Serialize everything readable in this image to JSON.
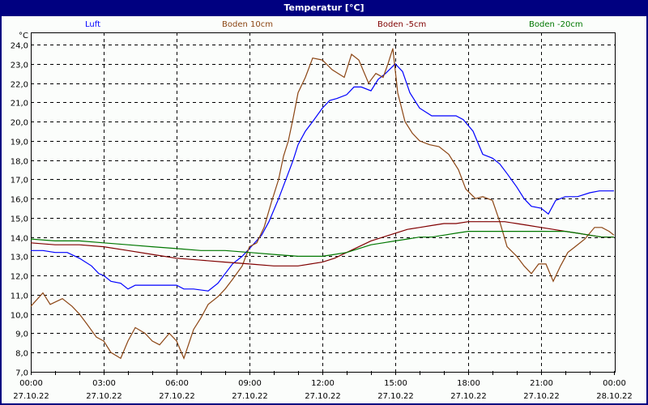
{
  "window": {
    "title": "Temperatur [°C]"
  },
  "legend": [
    {
      "label": "Luft",
      "color": "#0000ff"
    },
    {
      "label": "Boden 10cm",
      "color": "#8b4513"
    },
    {
      "label": "Boden -5cm",
      "color": "#800000"
    },
    {
      "label": "Boden -20cm",
      "color": "#007700"
    }
  ],
  "axes": {
    "y_unit": "°C",
    "y_ticks": [
      "24,0",
      "23,0",
      "22,0",
      "21,0",
      "20,0",
      "19,0",
      "18,0",
      "17,0",
      "16,0",
      "15,0",
      "14,0",
      "13,0",
      "12,0",
      "11,0",
      "10,0",
      "9,0",
      "8,0",
      "7,0"
    ],
    "x_ticks": [
      {
        "time": "00:00",
        "date": "27.10.22"
      },
      {
        "time": "03:00",
        "date": "27.10.22"
      },
      {
        "time": "06:00",
        "date": "27.10.22"
      },
      {
        "time": "09:00",
        "date": "27.10.22"
      },
      {
        "time": "12:00",
        "date": "27.10.22"
      },
      {
        "time": "15:00",
        "date": "27.10.22"
      },
      {
        "time": "18:00",
        "date": "27.10.22"
      },
      {
        "time": "21:00",
        "date": "27.10.22"
      },
      {
        "time": "00:00",
        "date": "28.10.22"
      }
    ]
  },
  "chart_data": {
    "type": "line",
    "title": "Temperatur [°C]",
    "xlabel": "",
    "ylabel": "°C",
    "ylim": [
      7,
      24
    ],
    "xlim_hours": [
      0,
      24
    ],
    "grid": true,
    "legend_position": "top",
    "x_tick_labels": [
      "00:00 27.10.22",
      "03:00 27.10.22",
      "06:00 27.10.22",
      "09:00 27.10.22",
      "12:00 27.10.22",
      "15:00 27.10.22",
      "18:00 27.10.22",
      "21:00 27.10.22",
      "00:00 28.10.22"
    ],
    "series": [
      {
        "name": "Luft",
        "color": "#0000ff",
        "x": [
          0,
          0.5,
          1,
          1.5,
          2,
          2.5,
          2.8,
          3,
          3.3,
          3.7,
          4,
          4.3,
          5,
          6,
          6.3,
          6.7,
          7.3,
          7.7,
          8,
          8.3,
          8.7,
          9,
          9.5,
          9.8,
          10.2,
          10.5,
          10.8,
          11,
          11.3,
          11.6,
          12,
          12.3,
          12.6,
          13,
          13.3,
          13.6,
          14,
          14.3,
          14.6,
          15,
          15.3,
          15.6,
          16,
          16.5,
          17,
          17.5,
          17.8,
          18.2,
          18.6,
          19,
          19.3,
          19.6,
          20,
          20.3,
          20.6,
          21,
          21.3,
          21.6,
          22,
          22.5,
          23,
          23.4,
          24
        ],
        "values": [
          13.3,
          13.3,
          13.2,
          13.2,
          12.9,
          12.5,
          12.1,
          12.0,
          11.7,
          11.6,
          11.3,
          11.5,
          11.5,
          11.5,
          11.3,
          11.3,
          11.2,
          11.6,
          12.1,
          12.6,
          13.0,
          13.4,
          14.1,
          14.8,
          16.0,
          17.0,
          18.0,
          18.8,
          19.5,
          20.0,
          20.7,
          21.1,
          21.2,
          21.4,
          21.8,
          21.8,
          21.6,
          22.2,
          22.5,
          23.0,
          22.6,
          21.5,
          20.7,
          20.3,
          20.3,
          20.3,
          20.1,
          19.5,
          18.3,
          18.1,
          17.8,
          17.3,
          16.6,
          16.0,
          15.6,
          15.5,
          15.2,
          15.9,
          16.1,
          16.1,
          16.3,
          16.4,
          16.4
        ]
      },
      {
        "name": "Boden 10cm",
        "color": "#8b4513",
        "x": [
          0,
          0.5,
          0.8,
          1.3,
          1.7,
          2,
          2.3,
          2.7,
          3,
          3.3,
          3.7,
          4,
          4.3,
          4.7,
          5,
          5.3,
          5.7,
          6,
          6.3,
          6.7,
          7,
          7.3,
          7.7,
          8,
          8.3,
          8.7,
          9,
          9.3,
          9.6,
          9.9,
          10.2,
          10.4,
          10.6,
          10.8,
          11,
          11.3,
          11.6,
          12,
          12.4,
          12.9,
          13.2,
          13.5,
          13.9,
          14.2,
          14.5,
          14.7,
          14.9,
          15.1,
          15.4,
          15.7,
          16,
          16.4,
          16.8,
          17.2,
          17.6,
          17.9,
          18.3,
          18.6,
          19,
          19.3,
          19.6,
          20,
          20.3,
          20.6,
          20.9,
          21.2,
          21.5,
          21.8,
          22.1,
          22.4,
          22.8,
          23.2,
          23.5,
          23.8,
          24
        ],
        "values": [
          10.4,
          11.1,
          10.5,
          10.8,
          10.4,
          10.0,
          9.5,
          8.8,
          8.6,
          8.0,
          7.7,
          8.6,
          9.3,
          9.0,
          8.6,
          8.4,
          9.0,
          8.6,
          7.7,
          9.2,
          9.8,
          10.5,
          10.9,
          11.3,
          11.8,
          12.5,
          13.5,
          13.7,
          14.5,
          15.8,
          17.0,
          18.2,
          19.0,
          20.2,
          21.5,
          22.3,
          23.3,
          23.2,
          22.7,
          22.3,
          23.5,
          23.2,
          22.0,
          22.5,
          22.3,
          23.0,
          23.8,
          21.5,
          20.0,
          19.4,
          19.0,
          18.8,
          18.7,
          18.3,
          17.5,
          16.5,
          16.0,
          16.1,
          15.9,
          14.8,
          13.5,
          13.0,
          12.5,
          12.1,
          12.6,
          12.6,
          11.7,
          12.5,
          13.2,
          13.5,
          13.9,
          14.5,
          14.5,
          14.3,
          14.1
        ]
      },
      {
        "name": "Boden -5cm",
        "color": "#800000",
        "x": [
          0,
          1,
          2,
          3,
          4,
          5,
          6,
          7,
          8,
          9,
          10,
          11,
          12,
          12.5,
          13,
          13.5,
          14,
          14.5,
          15,
          15.5,
          16,
          16.5,
          17,
          17.5,
          18,
          18.5,
          19,
          19.5,
          20,
          20.5,
          21,
          21.5,
          22,
          22.5,
          23,
          23.5,
          24
        ],
        "values": [
          13.7,
          13.6,
          13.6,
          13.5,
          13.3,
          13.1,
          12.9,
          12.8,
          12.7,
          12.6,
          12.5,
          12.5,
          12.7,
          12.9,
          13.2,
          13.5,
          13.8,
          14.0,
          14.2,
          14.4,
          14.5,
          14.6,
          14.7,
          14.7,
          14.8,
          14.8,
          14.8,
          14.8,
          14.7,
          14.6,
          14.5,
          14.4,
          14.3,
          14.2,
          14.1,
          14.0,
          14.0
        ]
      },
      {
        "name": "Boden -20cm",
        "color": "#007700",
        "x": [
          0,
          1,
          2,
          3,
          4,
          5,
          6,
          7,
          8,
          9,
          10,
          11,
          12,
          12.5,
          13,
          13.5,
          14,
          14.5,
          15,
          15.5,
          16,
          16.5,
          17,
          17.5,
          18,
          18.5,
          19,
          19.5,
          20,
          20.5,
          21,
          21.5,
          22,
          22.5,
          23,
          23.5,
          24
        ],
        "values": [
          13.9,
          13.8,
          13.8,
          13.7,
          13.6,
          13.5,
          13.4,
          13.3,
          13.3,
          13.2,
          13.1,
          13.0,
          13.0,
          13.1,
          13.2,
          13.4,
          13.6,
          13.7,
          13.8,
          13.9,
          14.0,
          14.0,
          14.1,
          14.2,
          14.3,
          14.3,
          14.3,
          14.3,
          14.3,
          14.3,
          14.3,
          14.3,
          14.3,
          14.2,
          14.1,
          14.0,
          14.0
        ]
      }
    ]
  }
}
